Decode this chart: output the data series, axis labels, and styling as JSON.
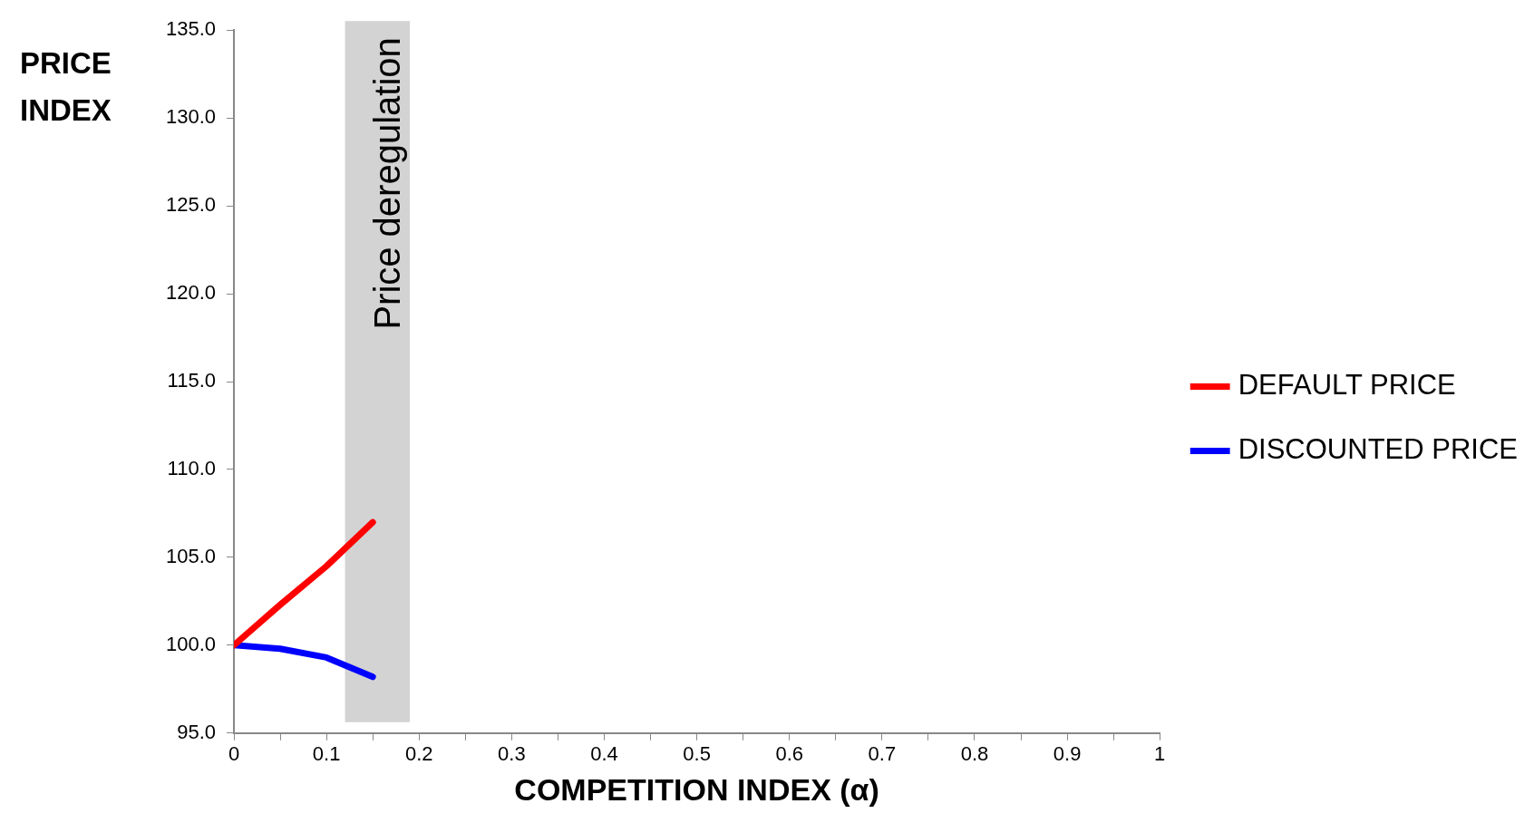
{
  "chart_data": {
    "type": "line",
    "xlabel": "COMPETITION INDEX (α)",
    "ylabel": "PRICE INDEX",
    "x": [
      0,
      0.05,
      0.1,
      0.15
    ],
    "series": [
      {
        "name": "DEFAULT PRICE",
        "color": "#ff0000",
        "values": [
          100,
          102.3,
          104.5,
          107.0
        ]
      },
      {
        "name": "DISCOUNTED PRICE",
        "color": "#0000ff",
        "values": [
          100,
          99.8,
          99.3,
          98.2
        ]
      }
    ],
    "xlim": [
      0,
      1
    ],
    "xticks": [
      0,
      {
        "value": 0.05,
        "label": null
      },
      0.1,
      {
        "value": 0.15,
        "label": null
      },
      0.2,
      {
        "value": 0.25,
        "label": null
      },
      0.3,
      {
        "value": 0.35,
        "label": null
      },
      0.4,
      {
        "value": 0.45,
        "label": null
      },
      0.5,
      {
        "value": 0.55,
        "label": null
      },
      0.6,
      {
        "value": 0.65,
        "label": null
      },
      0.7,
      {
        "value": 0.75,
        "label": null
      },
      0.8,
      {
        "value": 0.85,
        "label": null
      },
      0.9,
      {
        "value": 0.95,
        "label": null
      },
      1
    ],
    "ylim": [
      95,
      135
    ],
    "yticks": [
      {
        "value": 95,
        "label": "95.0"
      },
      {
        "value": 100,
        "label": "100.0"
      },
      {
        "value": 105,
        "label": "105.0"
      },
      {
        "value": 110,
        "label": "110.0"
      },
      {
        "value": 115,
        "label": "115.0"
      },
      {
        "value": 120,
        "label": "120.0"
      },
      {
        "value": 125,
        "label": "125.0"
      },
      {
        "value": 130,
        "label": "130.0"
      },
      {
        "value": 135,
        "label": "135.0"
      }
    ],
    "bands": [
      {
        "axis": "x",
        "from": 0.12,
        "to": 0.19,
        "label": "Price deregulation",
        "color": "#d3d3d3"
      }
    ],
    "grid": false,
    "legend": "right",
    "marker": "none",
    "line_style": "solid"
  }
}
